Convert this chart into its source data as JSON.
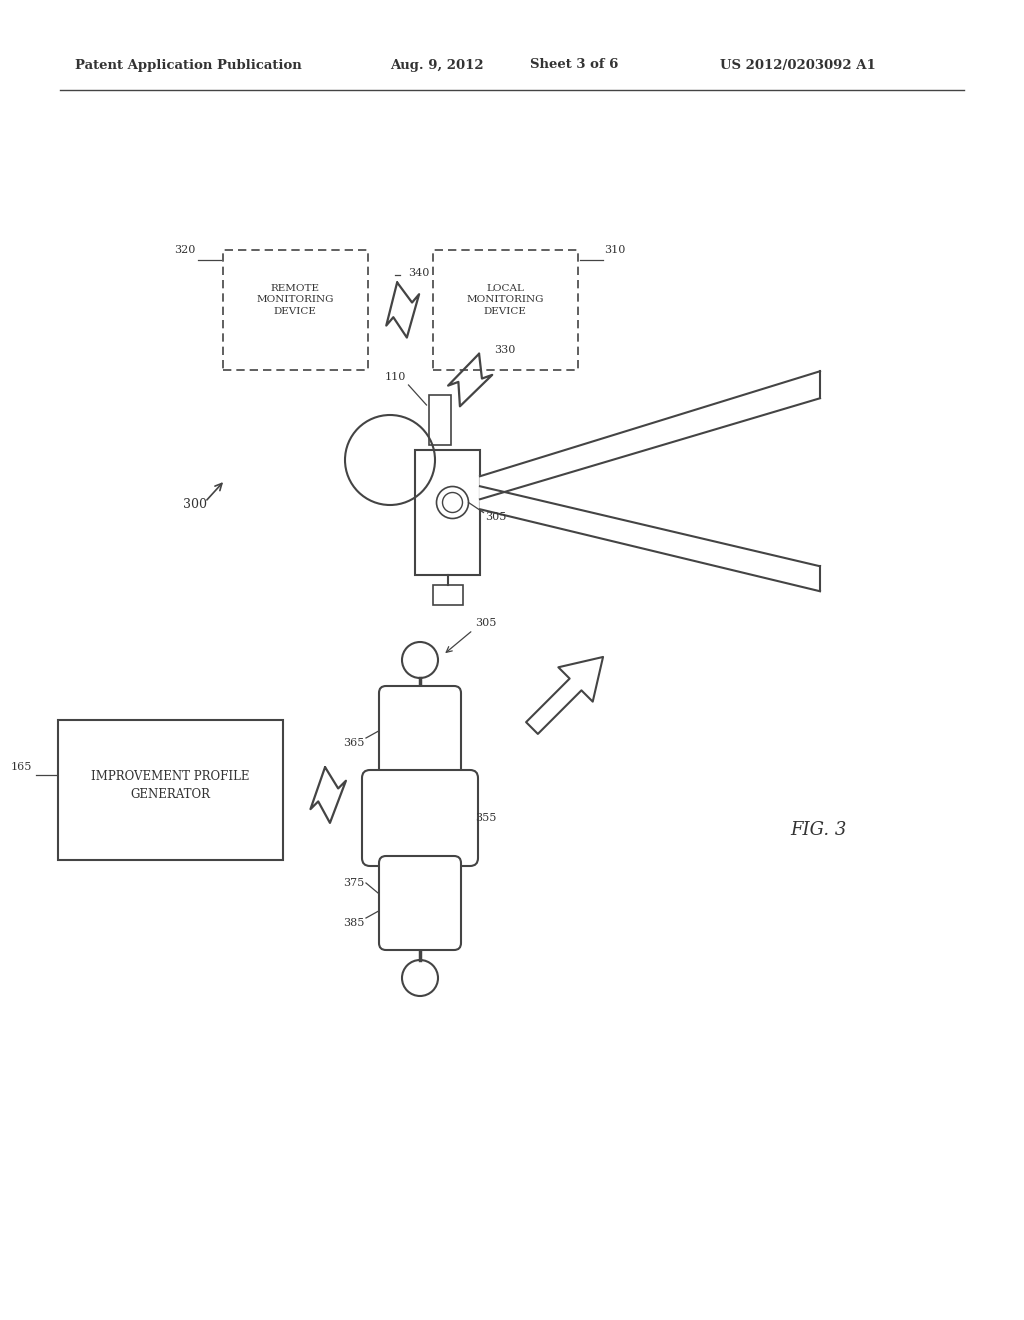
{
  "bg_color": "#ffffff",
  "header_text": "Patent Application Publication",
  "header_date": "Aug. 9, 2012",
  "header_sheet": "Sheet 3 of 6",
  "header_patent": "US 2012/0203092 A1",
  "fig_label": "FIG. 3"
}
